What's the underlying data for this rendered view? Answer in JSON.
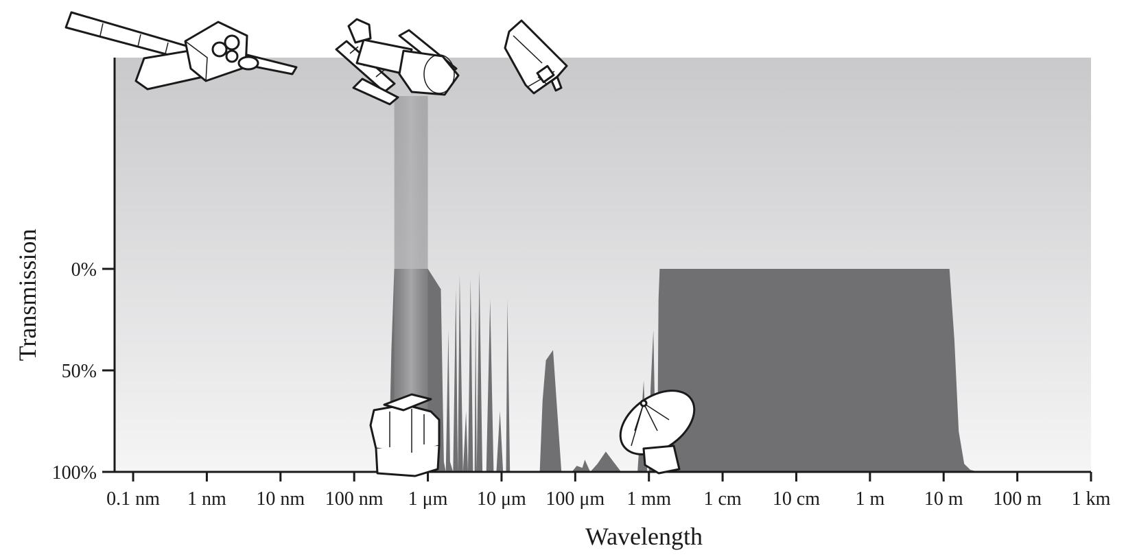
{
  "chart_data": {
    "type": "area",
    "xlabel": "Wavelength",
    "ylabel": "Transmission",
    "x_scale": "log",
    "x_unit": "m",
    "x_ticks": [
      {
        "value": 1e-10,
        "label": "0.1 nm"
      },
      {
        "value": 1e-09,
        "label": "1 nm"
      },
      {
        "value": 1e-08,
        "label": "10 nm"
      },
      {
        "value": 1e-07,
        "label": "100 nm"
      },
      {
        "value": 1e-06,
        "label": "1 μm"
      },
      {
        "value": 1e-05,
        "label": "10 μm"
      },
      {
        "value": 0.0001,
        "label": "100 μm"
      },
      {
        "value": 0.001,
        "label": "1 mm"
      },
      {
        "value": 0.01,
        "label": "1 cm"
      },
      {
        "value": 0.1,
        "label": "10 cm"
      },
      {
        "value": 1,
        "label": "1 m"
      },
      {
        "value": 10,
        "label": "10 m"
      },
      {
        "value": 100,
        "label": "100 m"
      },
      {
        "value": 1000,
        "label": "1 km"
      }
    ],
    "y_ticks": [
      {
        "value": 0,
        "label": "0%"
      },
      {
        "value": 50,
        "label": "50%"
      },
      {
        "value": 100,
        "label": "100%"
      }
    ],
    "xlim": [
      5.6e-11,
      1000
    ],
    "ylim": [
      0,
      100
    ],
    "opacity_curve": {
      "x": [
        5.6e-11,
        2.8e-07,
        3e-07,
        3.2e-07,
        3.5e-07,
        1e-06,
        1.5e-06,
        1.65e-06,
        1.75e-06,
        1.9e-06,
        2e-06,
        2.2e-06,
        2.4e-06,
        2.55e-06,
        2.7e-06,
        3e-06,
        3.3e-06,
        3.5e-06,
        3.8e-06,
        4.1e-06,
        4.3e-06,
        4.45e-06,
        4.6e-06,
        5e-06,
        5.5e-06,
        6.2e-06,
        7e-06,
        7.8e-06,
        8.5e-06,
        9.5e-06,
        1.05e-05,
        1.15e-05,
        1.2e-05,
        1.3e-05,
        1.45e-05,
        2.5e-05,
        3.3e-05,
        3.6e-05,
        4e-05,
        5e-05,
        6.5e-05,
        9e-05,
        0.000105,
        0.000125,
        0.000135,
        0.00016,
        0.0002,
        0.00026,
        0.00033,
        0.00042,
        0.00055,
        0.0007,
        0.00085,
        0.00095,
        0.001,
        0.00105,
        0.00115,
        0.00125,
        0.0013,
        0.00135,
        0.0014,
        0.0015,
        0.002,
        12.0,
        14.0,
        16.0,
        19.0,
        23.0,
        30.0,
        1000
      ],
      "y": [
        100,
        100,
        85,
        40,
        0,
        0,
        10,
        95,
        100,
        30,
        95,
        100,
        10,
        100,
        3,
        100,
        70,
        100,
        5,
        100,
        100,
        20,
        100,
        1,
        100,
        100,
        15,
        100,
        100,
        70,
        100,
        100,
        15,
        100,
        100,
        100,
        100,
        65,
        45,
        40,
        100,
        100,
        97,
        98,
        94,
        100,
        96,
        90,
        95,
        100,
        100,
        100,
        55,
        100,
        100,
        60,
        30,
        100,
        100,
        15,
        0,
        0,
        0,
        0,
        35,
        80,
        96,
        99,
        100,
        100
      ]
    },
    "instruments": [
      {
        "name": "x-ray-observatory",
        "x": 3e-09
      },
      {
        "name": "space-telescope",
        "x": 5e-07
      },
      {
        "name": "infrared-space-telescope",
        "x": 4e-05
      },
      {
        "name": "ground-optical-observatory",
        "x": 8e-07
      },
      {
        "name": "radio-dish",
        "x": 0.0013
      }
    ],
    "colors": {
      "opaque": "#707072",
      "sky_top": "#c9c9cb",
      "sky_bottom": "#f5f5f6",
      "axis": "#1a1a1a"
    }
  }
}
